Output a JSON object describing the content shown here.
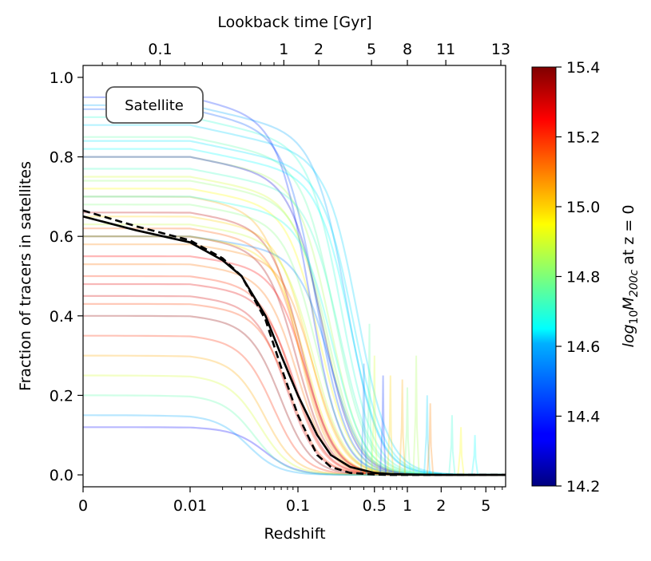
{
  "chart_data": {
    "type": "line",
    "panel_label": "Satellite",
    "xlabel": "Redshift",
    "ylabel": "Fraction of tracers in satellites",
    "top_axis_label": "Lookback time [Gyr]",
    "colorbar_label": "log10M200c at z = 0",
    "x_scale": "symlog (linear near 0, logarithmic above 0.01)",
    "xlim": [
      0,
      7.5
    ],
    "ylim": [
      -0.03,
      1.03
    ],
    "x_ticks": [
      {
        "value": 0,
        "label": "0"
      },
      {
        "value": 0.01,
        "label": "0.01"
      },
      {
        "value": 0.1,
        "label": "0.1"
      },
      {
        "value": 0.5,
        "label": "0.5"
      },
      {
        "value": 1,
        "label": "1"
      },
      {
        "value": 2,
        "label": "2"
      },
      {
        "value": 5,
        "label": "5"
      }
    ],
    "y_ticks": [
      {
        "value": 0.0,
        "label": "0.0"
      },
      {
        "value": 0.2,
        "label": "0.2"
      },
      {
        "value": 0.4,
        "label": "0.4"
      },
      {
        "value": 0.6,
        "label": "0.6"
      },
      {
        "value": 0.8,
        "label": "0.8"
      },
      {
        "value": 1.0,
        "label": "1.0"
      }
    ],
    "top_ticks": [
      {
        "label": "0.1",
        "z": 0.0072
      },
      {
        "label": "1",
        "z": 0.074
      },
      {
        "label": "2",
        "z": 0.155
      },
      {
        "label": "5",
        "z": 0.47
      },
      {
        "label": "8",
        "z": 1.0
      },
      {
        "label": "11",
        "z": 2.2
      },
      {
        "label": "13",
        "z": 6.8
      }
    ],
    "colorbar": {
      "colormap": "jet",
      "range": [
        14.2,
        15.4
      ],
      "ticks": [
        {
          "value": 14.2,
          "label": "14.2"
        },
        {
          "value": 14.4,
          "label": "14.4"
        },
        {
          "value": 14.6,
          "label": "14.6"
        },
        {
          "value": 14.8,
          "label": "14.8"
        },
        {
          "value": 15.0,
          "label": "15.0"
        },
        {
          "value": 15.2,
          "label": "15.2"
        },
        {
          "value": 15.4,
          "label": "15.4"
        }
      ]
    },
    "series": [
      {
        "style": "solid",
        "color": "#000000",
        "x": [
          0,
          0.005,
          0.01,
          0.02,
          0.03,
          0.05,
          0.07,
          0.1,
          0.15,
          0.2,
          0.3,
          0.5,
          0.7,
          1,
          2,
          7.5
        ],
        "y": [
          0.65,
          0.615,
          0.585,
          0.54,
          0.5,
          0.4,
          0.3,
          0.2,
          0.1,
          0.05,
          0.02,
          0.005,
          0.002,
          0.001,
          0,
          0
        ]
      },
      {
        "style": "dashed",
        "color": "#000000",
        "x": [
          0,
          0.005,
          0.01,
          0.02,
          0.03,
          0.05,
          0.07,
          0.1,
          0.15,
          0.2,
          0.3,
          0.5,
          0.7,
          1,
          2,
          7.5
        ],
        "y": [
          0.665,
          0.625,
          0.59,
          0.545,
          0.5,
          0.39,
          0.27,
          0.15,
          0.05,
          0.02,
          0.005,
          0.001,
          0,
          0,
          0,
          0
        ]
      }
    ],
    "tracks": [
      {
        "m": 15.35,
        "y0": 0.6,
        "zd": 0.1
      },
      {
        "m": 15.3,
        "y0": 0.45,
        "zd": 0.08
      },
      {
        "m": 15.25,
        "y0": 0.55,
        "zd": 0.12
      },
      {
        "m": 15.2,
        "y0": 0.5,
        "zd": 0.09
      },
      {
        "m": 15.38,
        "y0": 0.4,
        "zd": 0.07
      },
      {
        "m": 15.15,
        "y0": 0.62,
        "zd": 0.11
      },
      {
        "m": 15.1,
        "y0": 0.58,
        "zd": 0.14
      },
      {
        "m": 15.05,
        "y0": 0.7,
        "zd": 0.1
      },
      {
        "m": 15.0,
        "y0": 0.65,
        "zd": 0.13
      },
      {
        "m": 14.95,
        "y0": 0.72,
        "zd": 0.16
      },
      {
        "m": 14.9,
        "y0": 0.75,
        "zd": 0.18
      },
      {
        "m": 14.85,
        "y0": 0.8,
        "zd": 0.2
      },
      {
        "m": 14.8,
        "y0": 0.68,
        "zd": 0.15
      },
      {
        "m": 14.75,
        "y0": 0.85,
        "zd": 0.22
      },
      {
        "m": 14.7,
        "y0": 0.9,
        "zd": 0.25
      },
      {
        "m": 14.65,
        "y0": 0.82,
        "zd": 0.3
      },
      {
        "m": 14.6,
        "y0": 0.88,
        "zd": 0.35
      },
      {
        "m": 14.55,
        "y0": 0.93,
        "zd": 0.28
      },
      {
        "m": 14.5,
        "y0": 0.6,
        "zd": 0.2
      },
      {
        "m": 14.45,
        "y0": 0.92,
        "zd": 0.15
      },
      {
        "m": 14.4,
        "y0": 0.95,
        "zd": 0.13
      },
      {
        "m": 14.35,
        "y0": 0.12,
        "zd": 0.05
      },
      {
        "m": 14.3,
        "y0": 0.8,
        "zd": 0.17
      },
      {
        "m": 15.2,
        "y0": 0.35,
        "zd": 0.06
      },
      {
        "m": 15.05,
        "y0": 0.3,
        "zd": 0.05
      },
      {
        "m": 14.9,
        "y0": 0.25,
        "zd": 0.045
      },
      {
        "m": 14.75,
        "y0": 0.2,
        "zd": 0.04
      },
      {
        "m": 14.55,
        "y0": 0.15,
        "zd": 0.035
      },
      {
        "m": 15.28,
        "y0": 0.48,
        "zd": 0.095
      },
      {
        "m": 15.12,
        "y0": 0.53,
        "zd": 0.1
      },
      {
        "m": 14.98,
        "y0": 0.6,
        "zd": 0.12
      },
      {
        "m": 14.82,
        "y0": 0.74,
        "zd": 0.19
      },
      {
        "m": 14.68,
        "y0": 0.7,
        "zd": 0.21
      },
      {
        "m": 15.33,
        "y0": 0.66,
        "zd": 0.11
      },
      {
        "m": 15.18,
        "y0": 0.43,
        "zd": 0.085
      },
      {
        "m": 14.88,
        "y0": 0.63,
        "zd": 0.14
      },
      {
        "m": 14.72,
        "y0": 0.77,
        "zd": 0.24
      },
      {
        "m": 14.62,
        "y0": 0.84,
        "zd": 0.32
      }
    ],
    "spikes": [
      {
        "m": 15.0,
        "z": 0.7,
        "y": 0.25
      },
      {
        "m": 14.8,
        "z": 1.0,
        "y": 0.22
      },
      {
        "m": 14.6,
        "z": 1.5,
        "y": 0.2
      },
      {
        "m": 15.1,
        "z": 1.6,
        "y": 0.18
      },
      {
        "m": 14.9,
        "z": 0.5,
        "y": 0.3
      },
      {
        "m": 14.7,
        "z": 2.5,
        "y": 0.15
      },
      {
        "m": 14.5,
        "z": 0.4,
        "y": 0.28
      },
      {
        "m": 14.4,
        "z": 0.6,
        "y": 0.25
      },
      {
        "m": 14.95,
        "z": 3.0,
        "y": 0.12
      },
      {
        "m": 14.65,
        "z": 4.0,
        "y": 0.1
      },
      {
        "m": 15.05,
        "z": 0.9,
        "y": 0.24
      },
      {
        "m": 14.85,
        "z": 1.2,
        "y": 0.3
      },
      {
        "m": 14.75,
        "z": 0.45,
        "y": 0.38
      }
    ]
  }
}
